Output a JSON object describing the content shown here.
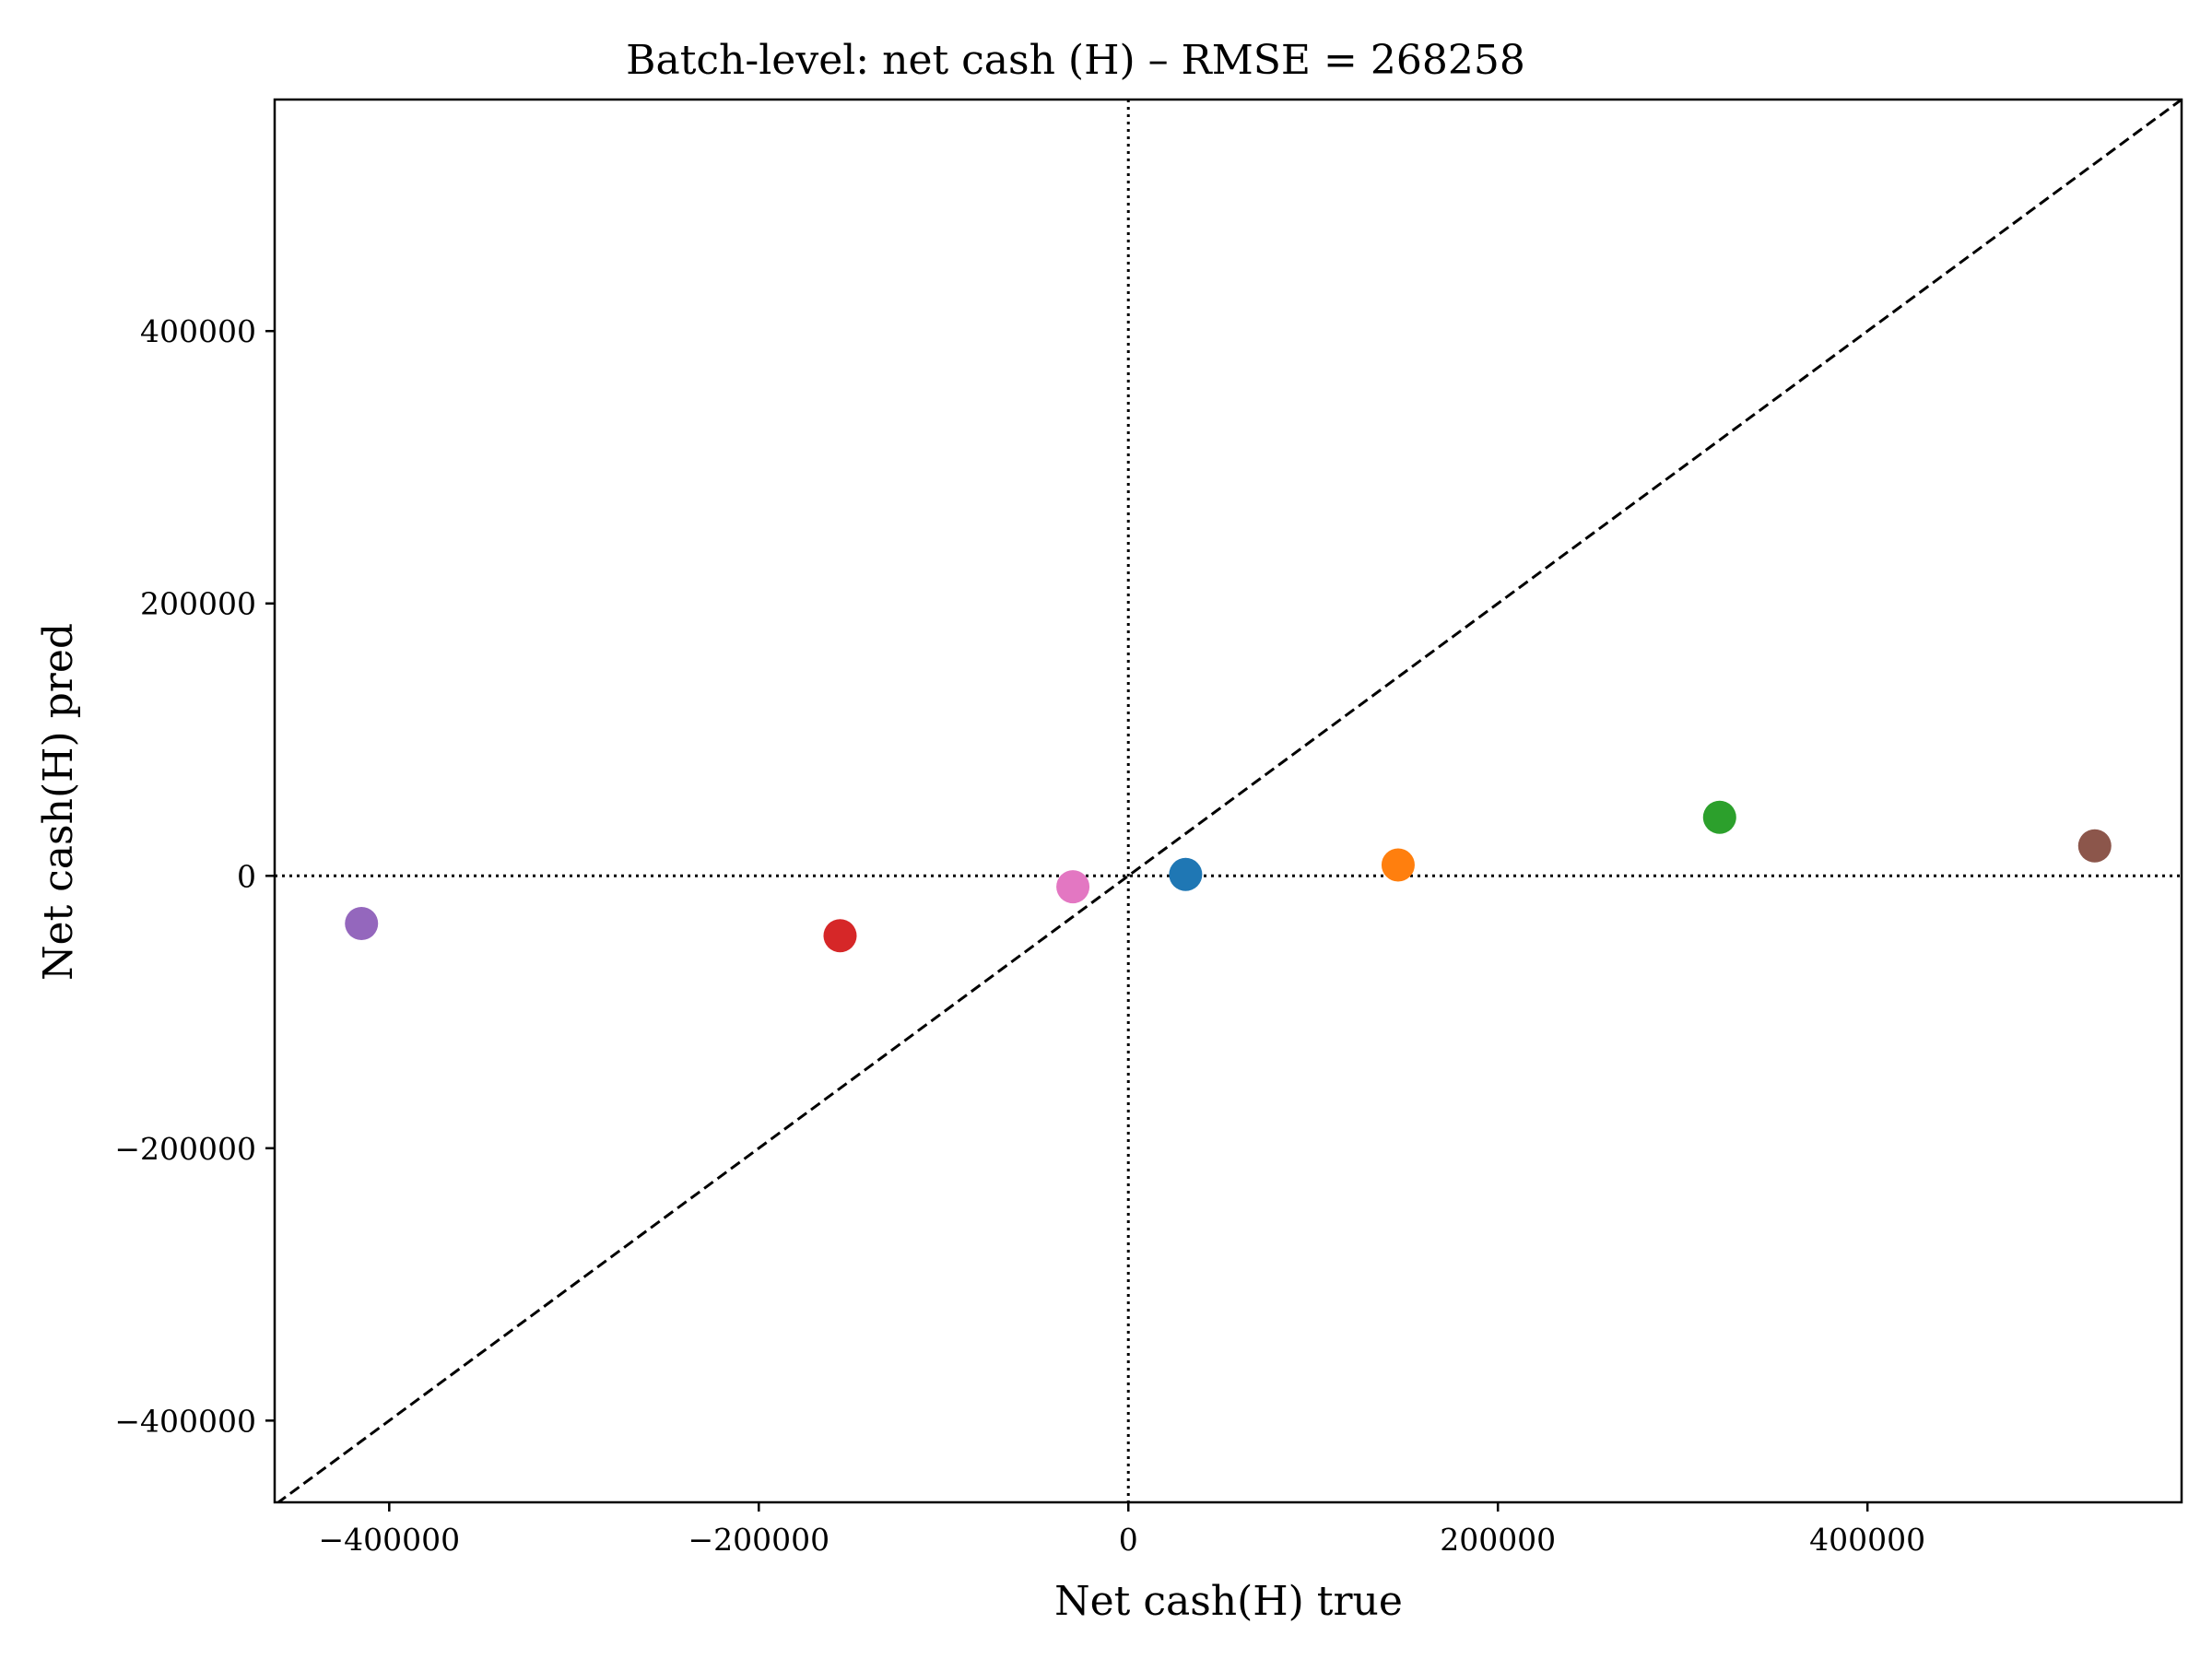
{
  "chart_data": {
    "type": "scatter",
    "title": "Batch-level: net cash (H) – RMSE = 268258",
    "xlabel": "Net cash(H) true",
    "ylabel": "Net cash(H) pred",
    "xlim": [
      -462000,
      570000
    ],
    "ylim": [
      -460000,
      570000
    ],
    "xticks": [
      -400000,
      -200000,
      0,
      200000,
      400000
    ],
    "xtick_labels": [
      "−400000",
      "−200000",
      "0",
      "200000",
      "400000"
    ],
    "yticks": [
      -400000,
      -200000,
      0,
      200000,
      400000
    ],
    "ytick_labels": [
      "−400000",
      "−200000",
      "0",
      "200000",
      "400000"
    ],
    "grid": false,
    "reference_lines": {
      "identity": "dashed",
      "zero_x": "dotted",
      "zero_y": "dotted"
    },
    "points": [
      {
        "x": 31000,
        "y": 1000,
        "color": "#1f77b4"
      },
      {
        "x": 146000,
        "y": 8000,
        "color": "#ff7f0e"
      },
      {
        "x": 320000,
        "y": 43000,
        "color": "#2ca02c"
      },
      {
        "x": -156000,
        "y": -44000,
        "color": "#d62728"
      },
      {
        "x": -415000,
        "y": -35000,
        "color": "#9467bd"
      },
      {
        "x": 523000,
        "y": 22000,
        "color": "#8c564b"
      },
      {
        "x": -30000,
        "y": -8000,
        "color": "#e377c2"
      }
    ]
  }
}
